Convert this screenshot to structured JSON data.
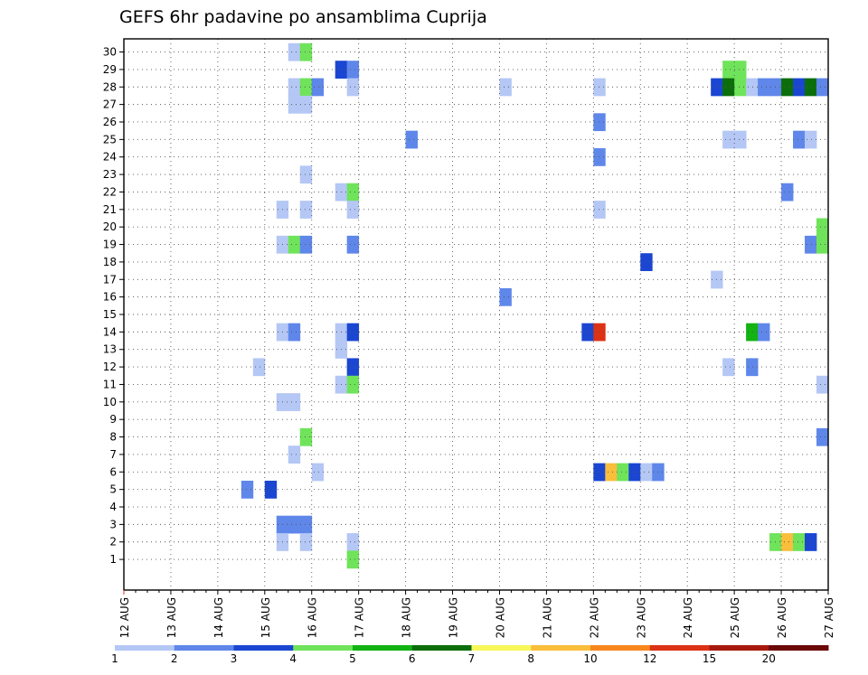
{
  "chart_data": {
    "type": "heatmap",
    "title": "GEFS 6hr padavine po ansamblima Cuprija",
    "xlabel": "",
    "ylabel": "",
    "x_tick_labels": [
      "12 AUG",
      "13 AUG",
      "14 AUG",
      "15 AUG",
      "16 AUG",
      "17 AUG",
      "18 AUG",
      "19 AUG",
      "20 AUG",
      "21 AUG",
      "22 AUG",
      "23 AUG",
      "24 AUG",
      "25 AUG",
      "26 AUG",
      "27 AUG"
    ],
    "y_tick_labels": [
      "1",
      "2",
      "3",
      "4",
      "5",
      "6",
      "7",
      "8",
      "9",
      "10",
      "11",
      "12",
      "13",
      "14",
      "15",
      "16",
      "17",
      "18",
      "19",
      "20",
      "21",
      "22",
      "23",
      "24",
      "25",
      "26",
      "27",
      "28",
      "29",
      "30"
    ],
    "n_members": 30,
    "steps_per_day": 4,
    "n_steps": 60,
    "grid": true,
    "legend": {
      "placement": "bottom",
      "colors": [
        "#b4c7f5",
        "#5f87ea",
        "#1a46d2",
        "#6fe35a",
        "#12b312",
        "#0b6e0b",
        "#f7f75a",
        "#f8be3c",
        "#f7871d",
        "#dc3215",
        "#a8190d",
        "#6b0808"
      ],
      "labels": [
        "1",
        "2",
        "3",
        "4",
        "5",
        "6",
        "7",
        "8",
        "10",
        "12",
        "15",
        "20"
      ]
    },
    "cells": [
      {
        "member": 30,
        "step": 15,
        "level": 1
      },
      {
        "member": 30,
        "step": 16,
        "level": 4
      },
      {
        "member": 29,
        "step": 19,
        "level": 3
      },
      {
        "member": 29,
        "step": 20,
        "level": 2
      },
      {
        "member": 29,
        "step": 52,
        "level": 4
      },
      {
        "member": 29,
        "step": 53,
        "level": 4
      },
      {
        "member": 28,
        "step": 15,
        "level": 1
      },
      {
        "member": 28,
        "step": 16,
        "level": 4
      },
      {
        "member": 28,
        "step": 17,
        "level": 2
      },
      {
        "member": 28,
        "step": 20,
        "level": 1
      },
      {
        "member": 28,
        "step": 33,
        "level": 1
      },
      {
        "member": 28,
        "step": 41,
        "level": 1
      },
      {
        "member": 28,
        "step": 51,
        "level": 3
      },
      {
        "member": 28,
        "step": 52,
        "level": 6
      },
      {
        "member": 28,
        "step": 53,
        "level": 4
      },
      {
        "member": 28,
        "step": 54,
        "level": 1
      },
      {
        "member": 28,
        "step": 55,
        "level": 2
      },
      {
        "member": 28,
        "step": 56,
        "level": 2
      },
      {
        "member": 28,
        "step": 57,
        "level": 6
      },
      {
        "member": 28,
        "step": 58,
        "level": 3
      },
      {
        "member": 28,
        "step": 59,
        "level": 6
      },
      {
        "member": 28,
        "step": 60,
        "level": 2
      },
      {
        "member": 27,
        "step": 15,
        "level": 1
      },
      {
        "member": 27,
        "step": 16,
        "level": 1
      },
      {
        "member": 26,
        "step": 41,
        "level": 2
      },
      {
        "member": 25,
        "step": 25,
        "level": 2
      },
      {
        "member": 25,
        "step": 52,
        "level": 1
      },
      {
        "member": 25,
        "step": 53,
        "level": 1
      },
      {
        "member": 25,
        "step": 58,
        "level": 2
      },
      {
        "member": 25,
        "step": 59,
        "level": 1
      },
      {
        "member": 24,
        "step": 41,
        "level": 2
      },
      {
        "member": 23,
        "step": 16,
        "level": 1
      },
      {
        "member": 22,
        "step": 19,
        "level": 1
      },
      {
        "member": 22,
        "step": 20,
        "level": 4
      },
      {
        "member": 22,
        "step": 57,
        "level": 2
      },
      {
        "member": 21,
        "step": 14,
        "level": 1
      },
      {
        "member": 21,
        "step": 16,
        "level": 1
      },
      {
        "member": 21,
        "step": 20,
        "level": 1
      },
      {
        "member": 21,
        "step": 41,
        "level": 1
      },
      {
        "member": 20,
        "step": 60,
        "level": 4
      },
      {
        "member": 19,
        "step": 14,
        "level": 1
      },
      {
        "member": 19,
        "step": 15,
        "level": 4
      },
      {
        "member": 19,
        "step": 16,
        "level": 2
      },
      {
        "member": 19,
        "step": 20,
        "level": 2
      },
      {
        "member": 19,
        "step": 59,
        "level": 2
      },
      {
        "member": 19,
        "step": 60,
        "level": 4
      },
      {
        "member": 18,
        "step": 45,
        "level": 3
      },
      {
        "member": 17,
        "step": 51,
        "level": 1
      },
      {
        "member": 16,
        "step": 33,
        "level": 2
      },
      {
        "member": 14,
        "step": 14,
        "level": 1
      },
      {
        "member": 14,
        "step": 15,
        "level": 2
      },
      {
        "member": 14,
        "step": 19,
        "level": 1
      },
      {
        "member": 14,
        "step": 20,
        "level": 3
      },
      {
        "member": 14,
        "step": 40,
        "level": 3
      },
      {
        "member": 14,
        "step": 41,
        "level": 10
      },
      {
        "member": 14,
        "step": 54,
        "level": 5
      },
      {
        "member": 14,
        "step": 55,
        "level": 2
      },
      {
        "member": 13,
        "step": 19,
        "level": 1
      },
      {
        "member": 12,
        "step": 12,
        "level": 1
      },
      {
        "member": 12,
        "step": 20,
        "level": 3
      },
      {
        "member": 12,
        "step": 52,
        "level": 1
      },
      {
        "member": 12,
        "step": 54,
        "level": 2
      },
      {
        "member": 11,
        "step": 19,
        "level": 1
      },
      {
        "member": 11,
        "step": 20,
        "level": 4
      },
      {
        "member": 11,
        "step": 60,
        "level": 1
      },
      {
        "member": 10,
        "step": 14,
        "level": 1
      },
      {
        "member": 10,
        "step": 15,
        "level": 1
      },
      {
        "member": 8,
        "step": 16,
        "level": 4
      },
      {
        "member": 8,
        "step": 60,
        "level": 2
      },
      {
        "member": 7,
        "step": 15,
        "level": 1
      },
      {
        "member": 6,
        "step": 17,
        "level": 1
      },
      {
        "member": 6,
        "step": 41,
        "level": 3
      },
      {
        "member": 6,
        "step": 42,
        "level": 8
      },
      {
        "member": 6,
        "step": 43,
        "level": 4
      },
      {
        "member": 6,
        "step": 44,
        "level": 3
      },
      {
        "member": 6,
        "step": 45,
        "level": 1
      },
      {
        "member": 6,
        "step": 46,
        "level": 2
      },
      {
        "member": 5,
        "step": 11,
        "level": 2
      },
      {
        "member": 5,
        "step": 13,
        "level": 3
      },
      {
        "member": 3,
        "step": 14,
        "level": 2
      },
      {
        "member": 3,
        "step": 15,
        "level": 2
      },
      {
        "member": 3,
        "step": 16,
        "level": 2
      },
      {
        "member": 2,
        "step": 14,
        "level": 1
      },
      {
        "member": 2,
        "step": 16,
        "level": 1
      },
      {
        "member": 2,
        "step": 20,
        "level": 1
      },
      {
        "member": 2,
        "step": 56,
        "level": 4
      },
      {
        "member": 2,
        "step": 57,
        "level": 8
      },
      {
        "member": 2,
        "step": 58,
        "level": 4
      },
      {
        "member": 2,
        "step": 59,
        "level": 3
      },
      {
        "member": 1,
        "step": 20,
        "level": 4
      }
    ]
  }
}
